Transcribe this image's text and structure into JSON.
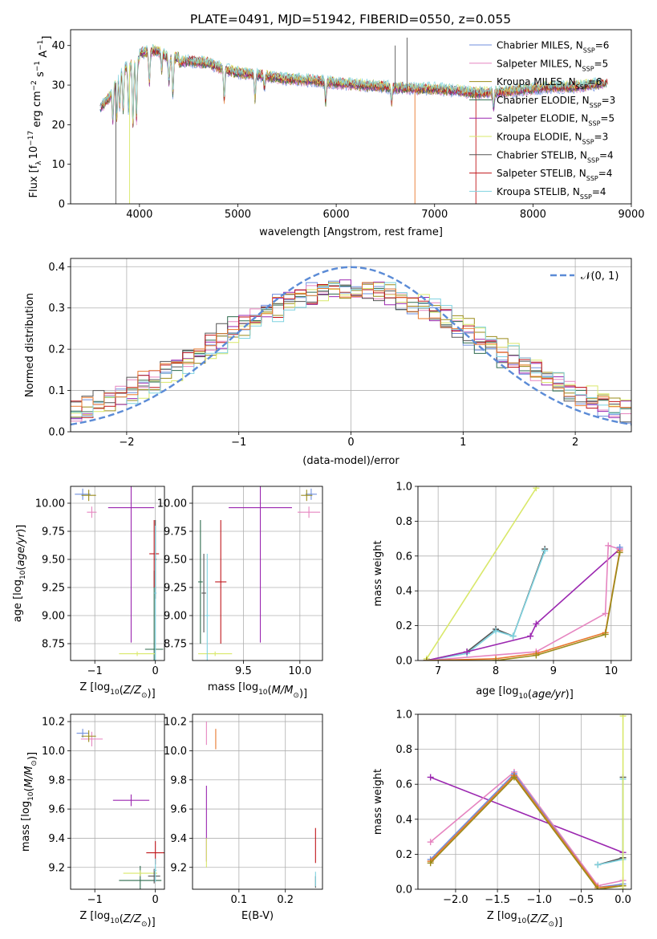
{
  "title": "PLATE=0491, MJD=51942, FIBERID=0550, z=0.055",
  "colors": {
    "Chabrier MILES": "#6f8fde",
    "Salpeter MILES": "#e685c0",
    "Kroupa MILES": "#9a8b1a",
    "Chabrier ELODIE": "#2e6b4e",
    "Salpeter ELODIE": "#9b27b0",
    "Kroupa ELODIE": "#d9e86a",
    "Chabrier STELIB": "#555555",
    "Salpeter STELIB": "#c0161b",
    "Kroupa STELIB": "#7fd3e0",
    "orange": "#e8782e",
    "gaussian": "#5b8bd6"
  },
  "chart_data": [
    {
      "type": "line",
      "xlabel": "wavelength [Angstrom, rest frame]",
      "ylabel": "Flux [f_λ 10^-17 erg cm^-2 s^-1 A^-1]",
      "xlim": [
        3300,
        9000
      ],
      "ylim": [
        0,
        44
      ],
      "xticks": [
        4000,
        5000,
        6000,
        7000,
        8000,
        9000
      ],
      "yticks": [
        0,
        10,
        20,
        30,
        40
      ],
      "legend_position": "upper right",
      "legend": [
        "Chabrier MILES, N_SSP=6",
        "Salpeter MILES, N_SSP=5",
        "Kroupa MILES, N_SSP=6",
        "Chabrier ELODIE, N_SSP=3",
        "Salpeter ELODIE, N_SSP=5",
        "Kroupa ELODIE, N_SSP=3",
        "Chabrier STELIB, N_SSP=4",
        "Salpeter STELIB, N_SSP=4",
        "Kroupa STELIB, N_SSP=4"
      ],
      "continuum": {
        "x": [
          3600,
          3700,
          3800,
          3900,
          4000,
          4100,
          4200,
          4300,
          4500,
          4700,
          4850,
          5000,
          5200,
          5500,
          5800,
          6000,
          6200,
          6500,
          6800,
          7000,
          7200,
          7400,
          7600,
          7800,
          8000,
          8200,
          8400,
          8600,
          8750
        ],
        "y": [
          24,
          27,
          33,
          35,
          36.5,
          37,
          37,
          35,
          36,
          35.5,
          34,
          33,
          32.5,
          31.5,
          31,
          30.5,
          30,
          29.5,
          29,
          29,
          28.5,
          28,
          28,
          28.5,
          29,
          29.5,
          29.5,
          30,
          30.5
        ]
      }
    },
    {
      "type": "histogram",
      "xlabel": "(data-model)/error",
      "ylabel": "Normed distribution",
      "xlim": [
        -2.5,
        2.5
      ],
      "ylim": [
        0,
        0.42
      ],
      "xticks": [
        -2,
        -1,
        0,
        1,
        2
      ],
      "yticks": [
        0.0,
        0.1,
        0.2,
        0.3,
        0.4
      ],
      "legend": [
        "𝒩(0, 1)"
      ],
      "legend_position": "upper right",
      "bin_width": 0.1
    },
    {
      "type": "scatter",
      "xlabel": "Z [log10(Z/Z⊙)]",
      "ylabel": "age  [log10(age/yr)]",
      "xlim": [
        -1.4,
        0.15
      ],
      "ylim": [
        8.6,
        10.15
      ],
      "xticks": [
        -1,
        0
      ],
      "yticks": [
        8.75,
        9.0,
        9.25,
        9.5,
        9.75,
        10.0
      ],
      "points": [
        {
          "series": "Chabrier MILES",
          "x": -1.2,
          "y": 10.08
        },
        {
          "series": "Salpeter MILES",
          "x": -1.05,
          "y": 9.92
        },
        {
          "series": "Kroupa MILES",
          "x": -1.1,
          "y": 10.07
        },
        {
          "series": "Chabrier ELODIE",
          "x": -0.02,
          "y": 8.7
        },
        {
          "series": "Salpeter ELODIE",
          "x": -0.4,
          "y": 9.96
        },
        {
          "series": "Kroupa ELODIE",
          "x": -0.3,
          "y": 8.66
        },
        {
          "series": "Chabrier STELIB",
          "x": 0.0,
          "y": 9.5
        },
        {
          "series": "Salpeter STELIB",
          "x": -0.02,
          "y": 9.55
        },
        {
          "series": "Kroupa STELIB",
          "x": 0.0,
          "y": 9.2
        }
      ]
    },
    {
      "type": "scatter",
      "xlabel": "mass [log10(M/M⊙)]",
      "ylabel": "",
      "xlim": [
        9.05,
        10.2
      ],
      "ylim": [
        8.6,
        10.15
      ],
      "xticks": [
        9.5,
        10.0
      ],
      "yticks": [
        8.75,
        9.0,
        9.25,
        9.5,
        9.75,
        10.0
      ],
      "points": [
        {
          "series": "Chabrier MILES",
          "x": 10.1,
          "y": 10.08
        },
        {
          "series": "Salpeter MILES",
          "x": 10.08,
          "y": 9.92
        },
        {
          "series": "Kroupa MILES",
          "x": 10.06,
          "y": 10.07
        },
        {
          "series": "Chabrier ELODIE",
          "x": 9.12,
          "y": 9.3
        },
        {
          "series": "Salpeter ELODIE",
          "x": 9.65,
          "y": 9.96
        },
        {
          "series": "Kroupa ELODIE",
          "x": 9.25,
          "y": 8.66
        },
        {
          "series": "Chabrier STELIB",
          "x": 9.15,
          "y": 9.2
        },
        {
          "series": "Salpeter STELIB",
          "x": 9.3,
          "y": 9.3
        },
        {
          "series": "Kroupa STELIB",
          "x": 9.18,
          "y": 9.0
        }
      ]
    },
    {
      "type": "line",
      "xlabel": "age  [log10(age/yr)]",
      "ylabel": "mass weight",
      "xlim": [
        6.65,
        10.35
      ],
      "ylim": [
        0,
        1.0
      ],
      "xticks": [
        7,
        8,
        9,
        10
      ],
      "yticks": [
        0.0,
        0.2,
        0.4,
        0.6,
        0.8,
        1.0
      ],
      "series": [
        {
          "color_key": "Kroupa ELODIE",
          "x": [
            6.8,
            8.7
          ],
          "y": [
            0.01,
            0.99
          ]
        },
        {
          "color_key": "Chabrier STELIB",
          "x": [
            6.8,
            7.5,
            8.0,
            8.3,
            8.85
          ],
          "y": [
            0.0,
            0.05,
            0.18,
            0.14,
            0.64
          ]
        },
        {
          "color_key": "Kroupa STELIB",
          "x": [
            6.8,
            7.5,
            8.0,
            8.3,
            8.85
          ],
          "y": [
            0.0,
            0.04,
            0.17,
            0.14,
            0.63
          ]
        },
        {
          "color_key": "Salpeter ELODIE",
          "x": [
            6.8,
            7.5,
            8.6,
            8.7,
            10.15
          ],
          "y": [
            0.0,
            0.05,
            0.14,
            0.21,
            0.64
          ]
        },
        {
          "color_key": "Salpeter MILES",
          "x": [
            6.8,
            8.7,
            9.9,
            9.95,
            10.15
          ],
          "y": [
            0.0,
            0.05,
            0.27,
            0.66,
            0.64
          ]
        },
        {
          "color_key": "orange",
          "x": [
            6.8,
            8.0,
            8.7,
            9.9,
            10.15
          ],
          "y": [
            0.0,
            0.01,
            0.04,
            0.16,
            0.63
          ]
        },
        {
          "color_key": "Kroupa MILES",
          "x": [
            6.8,
            8.0,
            8.7,
            9.9,
            10.15
          ],
          "y": [
            0.0,
            0.0,
            0.03,
            0.15,
            0.62
          ]
        },
        {
          "color_key": "Chabrier MILES",
          "x": [
            10.15
          ],
          "y": [
            0.65
          ]
        }
      ]
    },
    {
      "type": "scatter",
      "xlabel": "Z [log10(Z/Z⊙)]",
      "ylabel": "mass [log10(M/M⊙)]",
      "xlim": [
        -1.4,
        0.15
      ],
      "ylim": [
        9.05,
        10.25
      ],
      "xticks": [
        -1,
        0
      ],
      "yticks": [
        9.2,
        9.4,
        9.6,
        9.8,
        10.0,
        10.2
      ],
      "points": [
        {
          "series": "Chabrier MILES",
          "x": -1.2,
          "y": 10.12
        },
        {
          "series": "Salpeter MILES",
          "x": -1.05,
          "y": 10.08
        },
        {
          "series": "Kroupa MILES",
          "x": -1.1,
          "y": 10.1
        },
        {
          "series": "Salpeter ELODIE",
          "x": -0.4,
          "y": 9.66
        },
        {
          "series": "Chabrier ELODIE",
          "x": -0.25,
          "y": 9.11
        },
        {
          "series": "Kroupa ELODIE",
          "x": -0.25,
          "y": 9.16
        },
        {
          "series": "Chabrier STELIB",
          "x": -0.02,
          "y": 9.14
        },
        {
          "series": "Salpeter STELIB",
          "x": 0.0,
          "y": 9.3
        },
        {
          "series": "Kroupa STELIB",
          "x": 0.0,
          "y": 9.18
        }
      ]
    },
    {
      "type": "scatter",
      "xlabel": "E(B-V)",
      "ylabel": "",
      "xlim": [
        0.0,
        0.28
      ],
      "ylim": [
        9.05,
        10.25
      ],
      "xticks": [
        0.1,
        0.2
      ],
      "yticks": [
        9.2,
        9.4,
        9.6,
        9.8,
        10.0,
        10.2
      ],
      "points": [
        {
          "series": "Salpeter MILES",
          "x": 0.03,
          "y": 10.12
        },
        {
          "series": "orange",
          "x": 0.05,
          "y": 10.08
        },
        {
          "series": "Salpeter ELODIE",
          "x": 0.03,
          "y": 9.5
        },
        {
          "series": "Kroupa ELODIE",
          "x": 0.03,
          "y": 9.3
        },
        {
          "series": "Salpeter STELIB",
          "x": 0.265,
          "y": 9.35
        },
        {
          "series": "Chabrier STELIB",
          "x": 0.265,
          "y": 9.1
        },
        {
          "series": "Kroupa STELIB",
          "x": 0.265,
          "y": 9.12
        }
      ]
    },
    {
      "type": "line",
      "xlabel": "Z [log10(Z/Z⊙)]",
      "ylabel": "mass weight",
      "xlim": [
        -2.45,
        0.1
      ],
      "ylim": [
        0,
        1.0
      ],
      "xticks": [
        -2.0,
        -1.5,
        -1.0,
        -0.5,
        0.0
      ],
      "yticks": [
        0.0,
        0.2,
        0.4,
        0.6,
        0.8,
        1.0
      ],
      "series": [
        {
          "color_key": "Salpeter ELODIE",
          "x": [
            -2.3,
            0.0
          ],
          "y": [
            0.64,
            0.21
          ]
        },
        {
          "color_key": "Salpeter MILES",
          "x": [
            -2.3,
            -1.3,
            -0.3,
            0.0
          ],
          "y": [
            0.27,
            0.67,
            0.02,
            0.05
          ]
        },
        {
          "color_key": "Chabrier MILES",
          "x": [
            -2.3,
            -1.3,
            -0.3,
            0.0
          ],
          "y": [
            0.17,
            0.66,
            0.01,
            0.03
          ]
        },
        {
          "color_key": "orange",
          "x": [
            -2.3,
            -1.3,
            -0.3,
            0.0
          ],
          "y": [
            0.16,
            0.65,
            0.01,
            0.02
          ]
        },
        {
          "color_key": "Kroupa MILES",
          "x": [
            -2.3,
            -1.3,
            -0.3,
            0.0
          ],
          "y": [
            0.15,
            0.64,
            0.0,
            0.02
          ]
        },
        {
          "color_key": "Chabrier STELIB",
          "x": [
            -0.3,
            0.0,
            0.0
          ],
          "y": [
            0.14,
            0.18,
            0.64
          ]
        },
        {
          "color_key": "Kroupa STELIB",
          "x": [
            -0.3,
            0.0,
            0.0
          ],
          "y": [
            0.14,
            0.17,
            0.63
          ]
        },
        {
          "color_key": "Kroupa ELODIE",
          "x": [
            0.0,
            0.0
          ],
          "y": [
            0.0,
            0.99
          ]
        }
      ]
    }
  ]
}
